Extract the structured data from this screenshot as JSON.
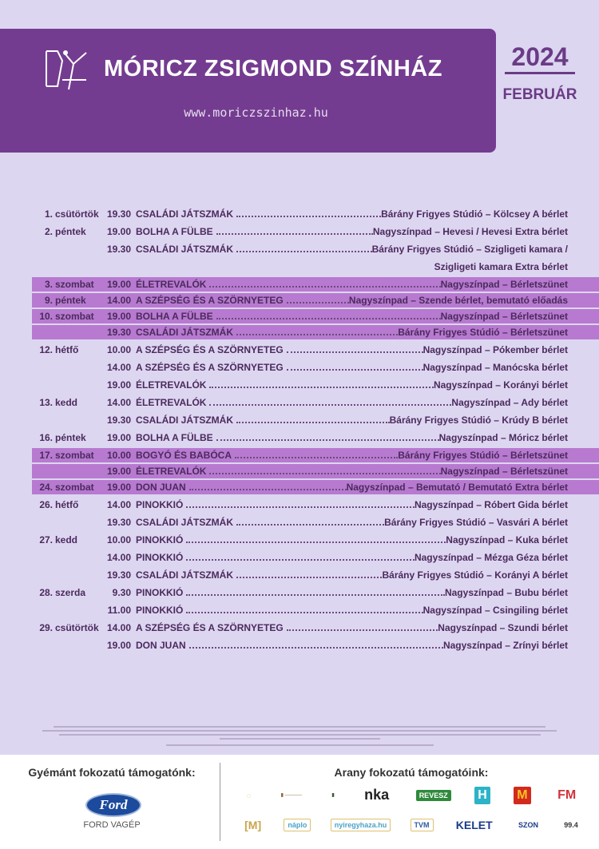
{
  "header": {
    "theater_name": "MÓRICZ ZSIGMOND SZÍNHÁZ",
    "website": "www.moriczszinhaz.hu",
    "year": "2024",
    "month": "FEBRUÁR"
  },
  "colors": {
    "background": "#ddd6f1",
    "header": "#743c90",
    "highlight_row": "#b77ad0",
    "text": "#4b2a5c"
  },
  "schedule": [
    {
      "day": "1.",
      "weekday": "csütörtök",
      "time": "19.30",
      "play": "CSALÁDI JÁTSZMÁK",
      "venue": "Bárány Frigyes Stúdió – Kölcsey A bérlet",
      "highlight": false
    },
    {
      "day": "2.",
      "weekday": "péntek",
      "time": "19.00",
      "play": "BOLHA A FÜLBE",
      "venue": "Nagyszínpad – Hevesi / Hevesi Extra bérlet",
      "highlight": false
    },
    {
      "day": "",
      "weekday": "",
      "time": "19.30",
      "play": "CSALÁDI JÁTSZMÁK",
      "venue": "Bárány Frigyes Stúdió – Szigligeti kamara /",
      "highlight": false
    },
    {
      "day": "",
      "weekday": "",
      "time": "",
      "play": "",
      "venue": "Szigligeti kamara Extra bérlet",
      "highlight": false,
      "continuation": true
    },
    {
      "day": "3.",
      "weekday": "szombat",
      "time": "19.00",
      "play": "ÉLETREVALÓK",
      "venue": "Nagyszínpad – Bérletszünet",
      "highlight": true
    },
    {
      "day": "9.",
      "weekday": "péntek",
      "time": "14.00",
      "play": "A SZÉPSÉG ÉS A SZÖRNYETEG",
      "venue": "Nagyszínpad – Szende bérlet, bemutató előadás",
      "highlight": true
    },
    {
      "day": "10.",
      "weekday": "szombat",
      "time": "19.00",
      "play": "BOLHA A FÜLBE",
      "venue": "Nagyszínpad – Bérletszünet",
      "highlight": true
    },
    {
      "day": "",
      "weekday": "",
      "time": "19.30",
      "play": "CSALÁDI JÁTSZMÁK",
      "venue": "Bárány Frigyes Stúdió – Bérletszünet",
      "highlight": true
    },
    {
      "day": "12.",
      "weekday": "hétfő",
      "time": "10.00",
      "play": "A SZÉPSÉG ÉS A SZÖRNYETEG",
      "venue": "Nagyszínpad – Pókember bérlet",
      "highlight": false
    },
    {
      "day": "",
      "weekday": "",
      "time": "14.00",
      "play": "A SZÉPSÉG ÉS A SZÖRNYETEG",
      "venue": "Nagyszínpad – Manócska bérlet",
      "highlight": false
    },
    {
      "day": "",
      "weekday": "",
      "time": "19.00",
      "play": "ÉLETREVALÓK",
      "venue": "Nagyszínpad – Korányi bérlet",
      "highlight": false
    },
    {
      "day": "13.",
      "weekday": "kedd",
      "time": "14.00",
      "play": "ÉLETREVALÓK",
      "venue": "Nagyszínpad – Ady bérlet",
      "highlight": false
    },
    {
      "day": "",
      "weekday": "",
      "time": "19.30",
      "play": "CSALÁDI JÁTSZMÁK",
      "venue": "Bárány Frigyes Stúdió – Krúdy B bérlet",
      "highlight": false
    },
    {
      "day": "16.",
      "weekday": "péntek",
      "time": "19.00",
      "play": "BOLHA A FÜLBE",
      "venue": "Nagyszínpad – Móricz bérlet",
      "highlight": false
    },
    {
      "day": "17.",
      "weekday": "szombat",
      "time": "10.00",
      "play": "BOGYÓ ÉS BABÓCA",
      "venue": "Bárány Frigyes Stúdió – Bérletszünet",
      "highlight": true
    },
    {
      "day": "",
      "weekday": "",
      "time": "19.00",
      "play": "ÉLETREVALÓK",
      "venue": "Nagyszínpad – Bérletszünet",
      "highlight": true
    },
    {
      "day": "24.",
      "weekday": "szombat",
      "time": "19.00",
      "play": "DON JUAN",
      "venue": "Nagyszínpad – Bemutató / Bemutató Extra bérlet",
      "highlight": true
    },
    {
      "day": "26.",
      "weekday": "hétfő",
      "time": "14.00",
      "play": "PINOKKIÓ",
      "venue": "Nagyszínpad – Róbert Gida bérlet",
      "highlight": false
    },
    {
      "day": "",
      "weekday": "",
      "time": "19.30",
      "play": "CSALÁDI JÁTSZMÁK",
      "venue": "Bárány Frigyes Stúdió – Vasvári A bérlet",
      "highlight": false
    },
    {
      "day": "27.",
      "weekday": "kedd",
      "time": "10.00",
      "play": "PINOKKIÓ",
      "venue": "Nagyszínpad – Kuka bérlet",
      "highlight": false
    },
    {
      "day": "",
      "weekday": "",
      "time": "14.00",
      "play": "PINOKKIÓ",
      "venue": "Nagyszínpad – Mézga Géza bérlet",
      "highlight": false
    },
    {
      "day": "",
      "weekday": "",
      "time": "19.30",
      "play": "CSALÁDI JÁTSZMÁK",
      "venue": "Bárány Frigyes Stúdió – Korányi A bérlet",
      "highlight": false
    },
    {
      "day": "28.",
      "weekday": "szerda",
      "time": "9.30",
      "play": "PINOKKIÓ",
      "venue": "Nagyszínpad – Bubu bérlet",
      "highlight": false
    },
    {
      "day": "",
      "weekday": "",
      "time": "11.00",
      "play": "PINOKKIÓ",
      "venue": "Nagyszínpad – Csingiling bérlet",
      "highlight": false
    },
    {
      "day": "29.",
      "weekday": "csütörtök",
      "time": "14.00",
      "play": "A SZÉPSÉG ÉS A SZÖRNYETEG",
      "venue": "Nagyszínpad – Szundi bérlet",
      "highlight": false
    },
    {
      "day": "",
      "weekday": "",
      "time": "19.00",
      "play": "DON JUAN",
      "venue": "Nagyszínpad – Zrínyi bérlet",
      "highlight": false
    }
  ],
  "footer": {
    "diamond_title": "Gyémánt fokozatú támogatónk:",
    "diamond_sponsor_logo": "Ford",
    "diamond_sponsor": "FORD VAGÉP",
    "gold_title": "Arany fokozatú támogatóink:",
    "gold_sponsors_row1": [
      "nka",
      "REVESZ",
      "H",
      "M",
      "FM"
    ],
    "gold_sponsors_row2": [
      "náplo",
      "nyiregyhaza.hu",
      "TVM",
      "KELET",
      "SZON",
      "99.4"
    ]
  }
}
